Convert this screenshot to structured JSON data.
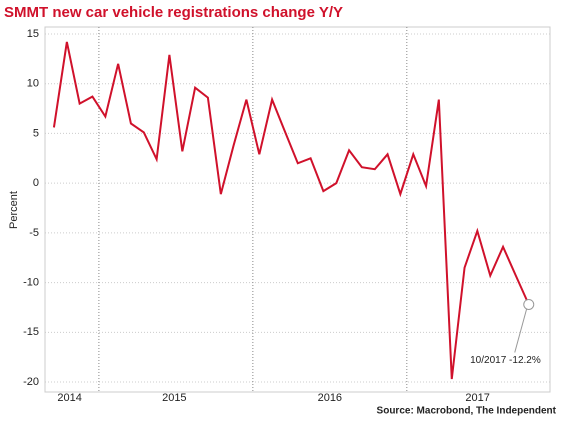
{
  "chart_data": {
    "type": "line",
    "title": "SMMT new car vehicle registrations change Y/Y",
    "y_label": "Percent",
    "source": "Source: Macrobond, The Independent",
    "annotation": {
      "text": "10/2017 -12.2%"
    },
    "x": [
      2014.708,
      2014.792,
      2014.875,
      2014.958,
      2015.042,
      2015.125,
      2015.208,
      2015.292,
      2015.375,
      2015.458,
      2015.542,
      2015.625,
      2015.708,
      2015.792,
      2015.875,
      2015.958,
      2016.042,
      2016.125,
      2016.208,
      2016.292,
      2016.375,
      2016.458,
      2016.542,
      2016.625,
      2016.708,
      2016.792,
      2016.875,
      2016.958,
      2017.042,
      2017.125,
      2017.208,
      2017.292,
      2017.375,
      2017.458,
      2017.542,
      2017.625,
      2017.708,
      2017.792
    ],
    "series": [
      {
        "name": "SMMT new car registrations Y/Y",
        "color": "#d0112b",
        "values": [
          5.6,
          14.2,
          8.0,
          8.7,
          6.7,
          12.0,
          6.0,
          5.1,
          2.4,
          12.9,
          3.2,
          9.6,
          8.6,
          -1.1,
          3.8,
          8.4,
          2.9,
          8.4,
          5.2,
          2.0,
          2.5,
          -0.8,
          0.0,
          3.3,
          1.6,
          1.4,
          2.9,
          -1.1,
          2.9,
          -0.3,
          8.4,
          -19.7,
          -8.5,
          -4.8,
          -9.3,
          -6.4,
          -9.3,
          -12.2
        ]
      }
    ],
    "xlim": [
      2014.65,
      2017.93
    ],
    "xticks": [
      {
        "value": 2014.81,
        "label": "2014"
      },
      {
        "value": 2015.49,
        "label": "2015"
      },
      {
        "value": 2016.5,
        "label": "2016"
      },
      {
        "value": 2017.46,
        "label": "2017"
      }
    ],
    "year_lines": [
      2015,
      2016,
      2017
    ],
    "ylim": [
      -21,
      15.7
    ],
    "yticks": [
      -20,
      -15,
      -10,
      -5,
      0,
      5,
      10,
      15
    ],
    "grid": true
  }
}
